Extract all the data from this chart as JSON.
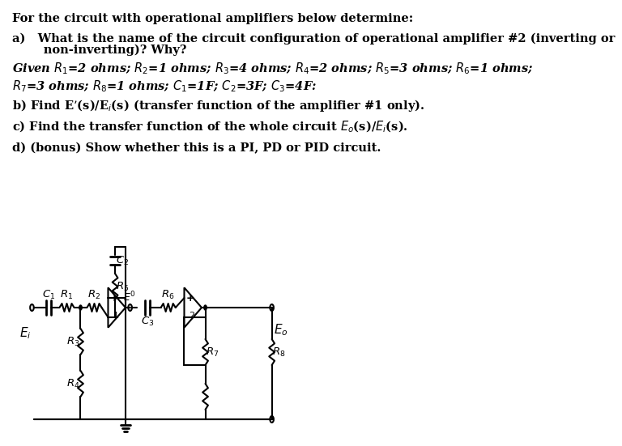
{
  "bg_color": "#ffffff",
  "text_color": "#000000",
  "line_color": "#000000",
  "line_width": 1.5,
  "text": {
    "line0": "For the circuit with operational amplifiers below determine:",
    "line1a": "a)   What is the name of the circuit configuration of operational amplifier #2 (inverting or",
    "line1b": "      non-inverting)? Why?",
    "line2": "Given $R_1$=2 ohms; $R_2$=1 ohms; $R_3$=4 ohms; $R_4$=2 ohms; $R_5$=3 ohms; $R_6$=1 ohms;",
    "line3": "$R_7$=3 ohms; $R_8$=1 ohms; $C_1$=1F; $C_2$=3F; $C_3$=4F:",
    "line4": "b) Find E’(s)/E$_i$(s) (transfer function of the amplifier #1 only).",
    "line5": "c) Find the transfer function of the whole circuit $E_o$(s)/$E_i$(s).",
    "line6": "d) (bonus) Show whether this is a PI, PD or PID circuit."
  }
}
